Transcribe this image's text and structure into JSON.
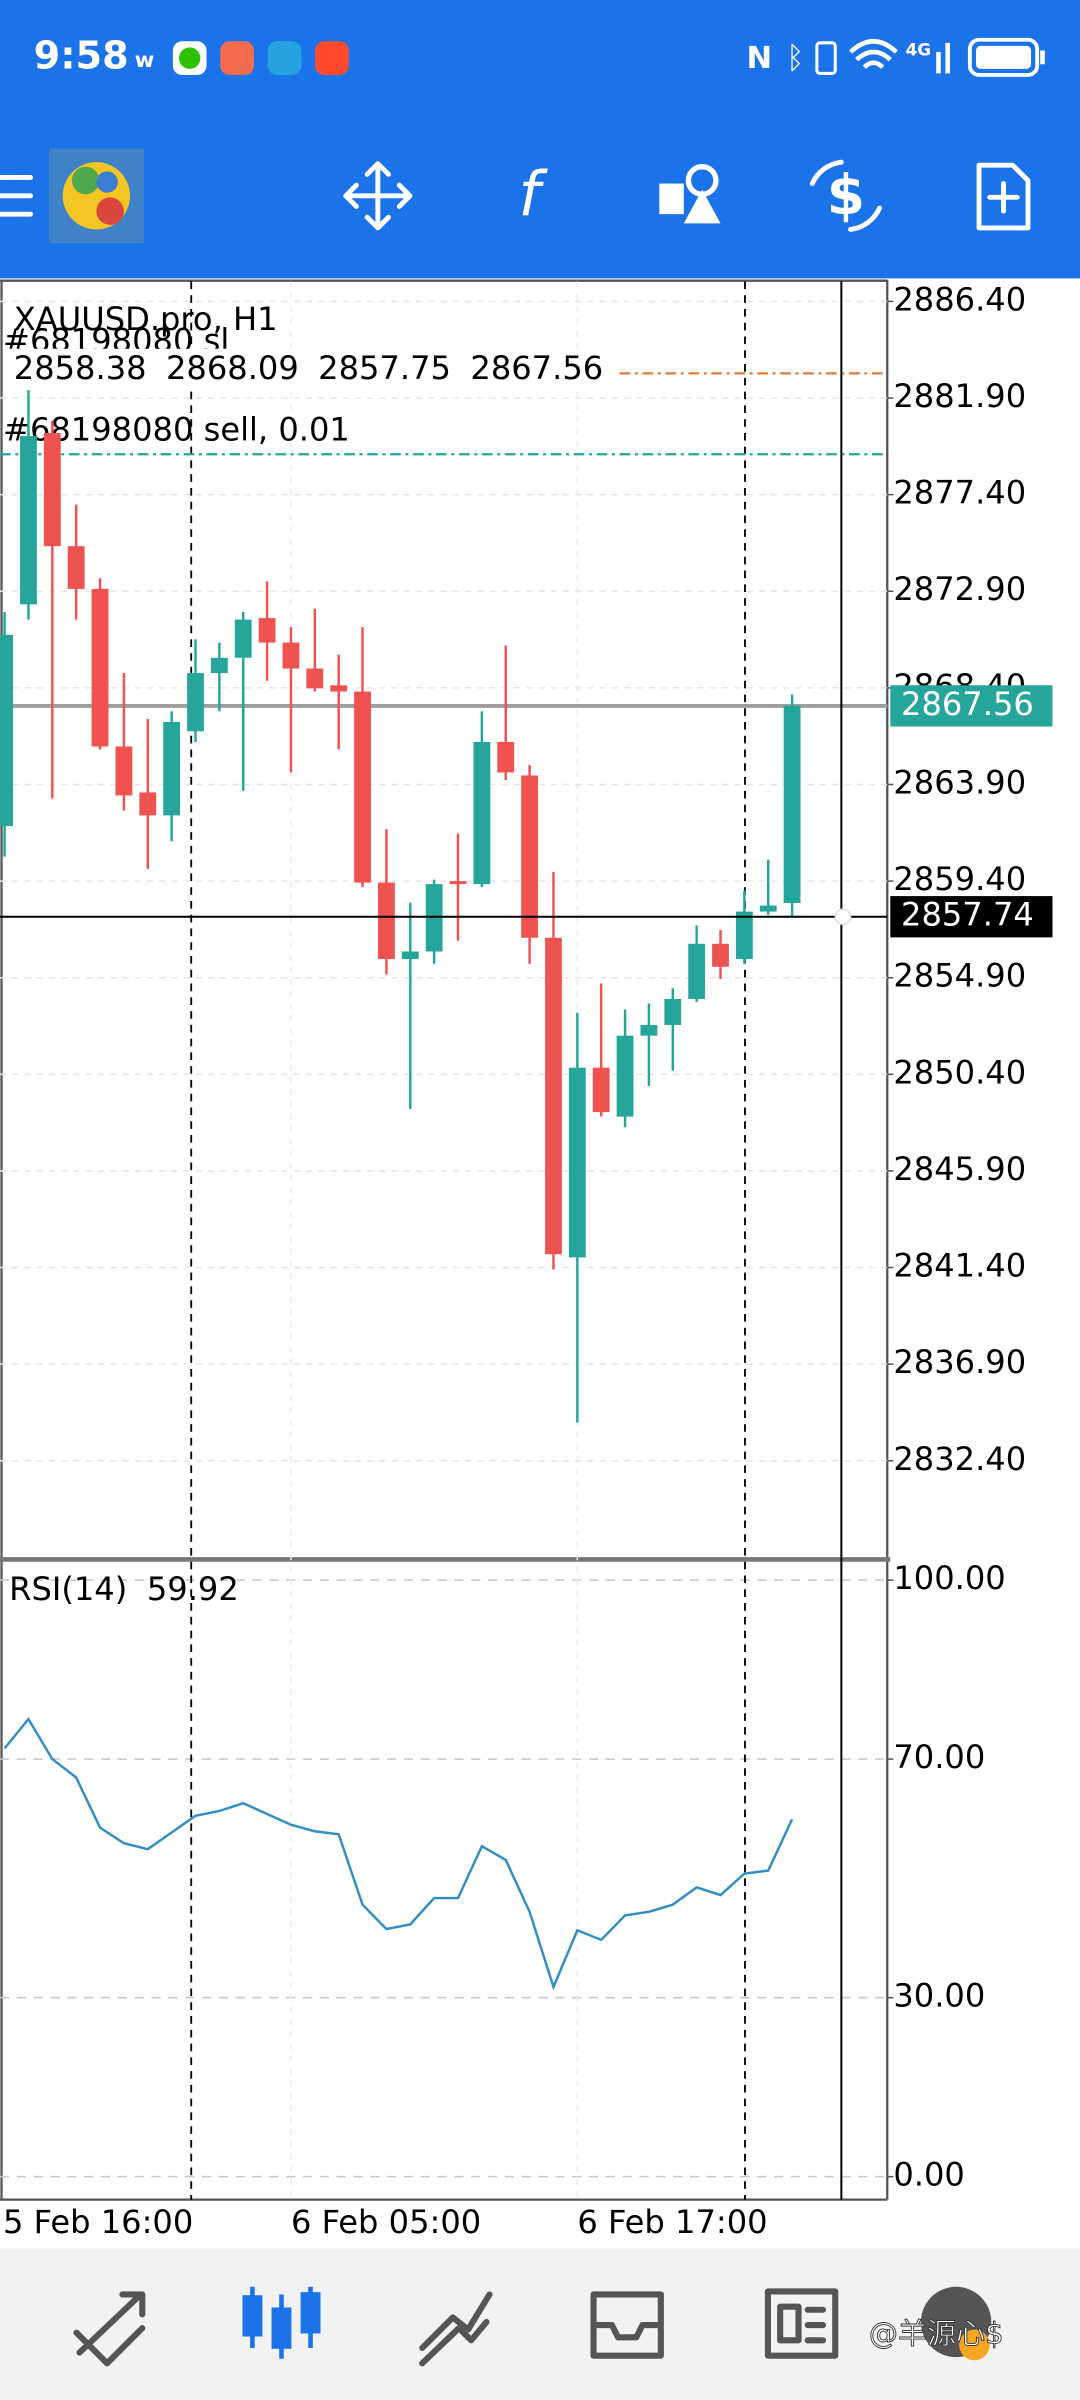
{
  "status_bar": {
    "time": "9:58",
    "network": "4G"
  },
  "chart_data": {
    "type": "candlestick",
    "title": "XAUUSD.pro, H1",
    "categories": [
      "5 Feb 16:00",
      null,
      null,
      null,
      null,
      null,
      null,
      null,
      null,
      null,
      null,
      null,
      null,
      "6 Feb 05:00",
      null,
      null,
      null,
      null,
      null,
      null,
      null,
      null,
      null,
      null,
      null,
      "6 Feb 17:00",
      null,
      null,
      null,
      null,
      null,
      null,
      null,
      null,
      null
    ],
    "open": [
      null,
      2861.96,
      2872.29,
      2880.27,
      2875.0,
      2873.01,
      2865.67,
      2863.53,
      2862.46,
      2866.38,
      2869.09,
      2869.8,
      2871.65,
      2870.51,
      2869.3,
      2868.52,
      2868.23,
      2859.33,
      2855.77,
      2856.12,
      2859.4,
      2859.26,
      2865.88,
      2864.32,
      2856.76,
      2841.87,
      2850.71,
      2848.43,
      2852.2,
      2852.7,
      2853.91,
      2856.48,
      2855.77,
      2857.98,
      2858.38
    ],
    "high": [
      null,
      2871.94,
      2882.27,
      2880.84,
      2876.93,
      2873.51,
      2869.09,
      2866.95,
      2867.31,
      2870.66,
      2870.51,
      2871.94,
      2873.36,
      2871.23,
      2872.08,
      2869.94,
      2871.23,
      2861.82,
      2858.4,
      2859.47,
      2861.61,
      2867.31,
      2870.37,
      2864.81,
      2859.83,
      2853.27,
      2854.63,
      2853.42,
      2853.7,
      2854.41,
      2857.33,
      2857.12,
      2858.97,
      2860.4,
      2868.09
    ],
    "low": [
      null,
      2860.54,
      2871.58,
      2863.25,
      2871.58,
      2865.53,
      2862.68,
      2859.97,
      2861.25,
      2865.88,
      2867.31,
      2863.6,
      2868.73,
      2864.46,
      2868.23,
      2865.53,
      2859.12,
      2855.05,
      2848.79,
      2855.55,
      2856.62,
      2859.12,
      2864.1,
      2855.55,
      2841.31,
      2834.18,
      2848.43,
      2847.93,
      2849.85,
      2850.57,
      2853.77,
      2854.84,
      2855.55,
      2857.83,
      2857.75
    ],
    "close": [
      null,
      2870.87,
      2880.13,
      2875.0,
      2873.01,
      2865.67,
      2863.39,
      2862.46,
      2866.81,
      2869.09,
      2869.8,
      2871.58,
      2870.51,
      2869.3,
      2868.38,
      2868.23,
      2859.33,
      2855.77,
      2856.12,
      2859.26,
      2859.26,
      2865.88,
      2864.46,
      2856.76,
      2842.02,
      2850.71,
      2848.64,
      2852.2,
      2852.7,
      2853.91,
      2856.48,
      2855.41,
      2857.98,
      2858.26,
      2867.56
    ],
    "up_color": "#26a69a",
    "down_color": "#ef5350",
    "ylim": [
      2827.91,
      2887.33
    ],
    "yticks": [
      {
        "value": 2886.4,
        "label": "2886.40"
      },
      {
        "value": 2881.9,
        "label": "2881.90"
      },
      {
        "value": 2877.4,
        "label": "2877.40"
      },
      {
        "value": 2872.9,
        "label": "2872.90"
      },
      {
        "value": 2868.4,
        "label": "2868.40"
      },
      {
        "value": 2863.9,
        "label": "2863.90"
      },
      {
        "value": 2859.4,
        "label": "2859.40"
      },
      {
        "value": 2854.9,
        "label": "2854.90"
      },
      {
        "value": 2850.4,
        "label": "2850.40"
      },
      {
        "value": 2845.9,
        "label": "2845.90"
      },
      {
        "value": 2841.4,
        "label": "2841.40"
      },
      {
        "value": 2836.9,
        "label": "2836.90"
      },
      {
        "value": 2832.4,
        "label": "2832.40"
      }
    ],
    "grid": true,
    "bid_line_color": "#9e9e9e",
    "crosshair_price": 2857.74,
    "order_lines": [
      {
        "label": "#68198080 sl",
        "value": 2883.05,
        "color": "#e07b39"
      },
      {
        "label": "#68198080 sell, 0.01",
        "value": 2879.28,
        "color": "#26a69a"
      }
    ],
    "indicator": {
      "type": "line",
      "title": "RSI(14)",
      "color": "#2f8fc5",
      "values": [
        null,
        71.8,
        76.7,
        70.0,
        66.9,
        58.5,
        55.9,
        54.9,
        57.7,
        60.5,
        61.3,
        62.6,
        60.8,
        59.0,
        57.9,
        57.4,
        45.6,
        41.5,
        42.3,
        46.7,
        46.7,
        55.4,
        53.1,
        44.4,
        31.8,
        41.3,
        39.7,
        43.8,
        44.4,
        45.6,
        48.5,
        47.2,
        50.8,
        51.3,
        59.92
      ],
      "ylim": [
        -3.85,
        103.08
      ],
      "yticks": [
        {
          "value": 100,
          "label": "100.00"
        },
        {
          "value": 70,
          "label": "70.00"
        },
        {
          "value": 30,
          "label": "30.00"
        },
        {
          "value": 0,
          "label": "0.00"
        }
      ]
    }
  },
  "watermark": "@羊源心$"
}
